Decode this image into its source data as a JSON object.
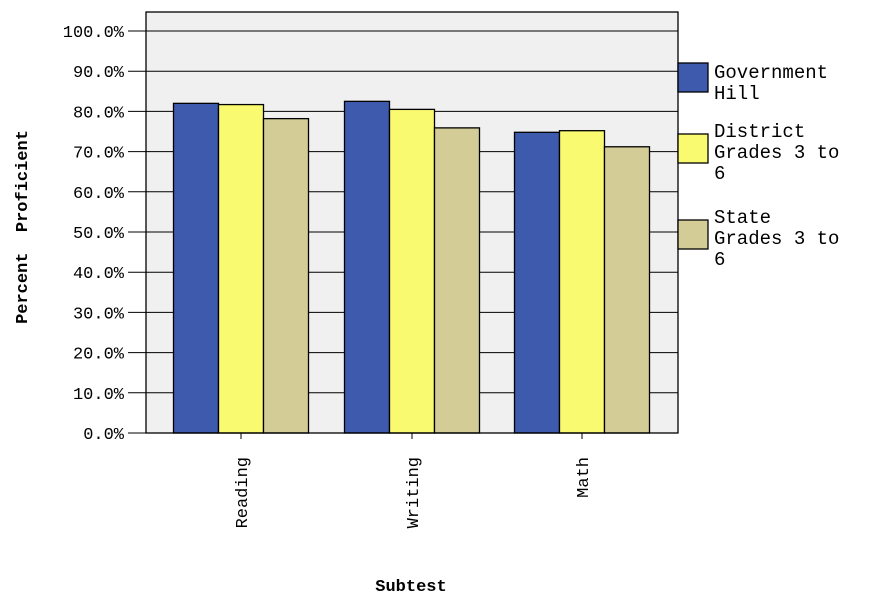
{
  "chart_data": {
    "type": "bar",
    "title": "",
    "xlabel": "Subtest",
    "ylabel": "Percent  Proficient",
    "categories": [
      "Reading",
      "Writing",
      "Math"
    ],
    "series": [
      {
        "name": "Government Hill",
        "legend_lines": [
          "Government",
          "Hill"
        ],
        "color": "#3d5aad",
        "values": [
          82.0,
          82.5,
          74.8
        ]
      },
      {
        "name": "District Grades 3 to 6",
        "legend_lines": [
          "District",
          "Grades 3 to",
          "6"
        ],
        "color": "#fafa71",
        "values": [
          81.7,
          80.5,
          75.2
        ]
      },
      {
        "name": "State Grades 3 to 6",
        "legend_lines": [
          "State",
          "Grades 3 to",
          "6"
        ],
        "color": "#d4cc96",
        "values": [
          78.2,
          75.9,
          71.2
        ]
      }
    ],
    "ylim": [
      0,
      100
    ],
    "yticks": [
      "0.0%",
      "10.0%",
      "20.0%",
      "30.0%",
      "40.0%",
      "50.0%",
      "60.0%",
      "70.0%",
      "80.0%",
      "90.0%",
      "100.0%"
    ],
    "grid": true,
    "legend_position": "right",
    "plot_background": "#f0f0f0"
  }
}
